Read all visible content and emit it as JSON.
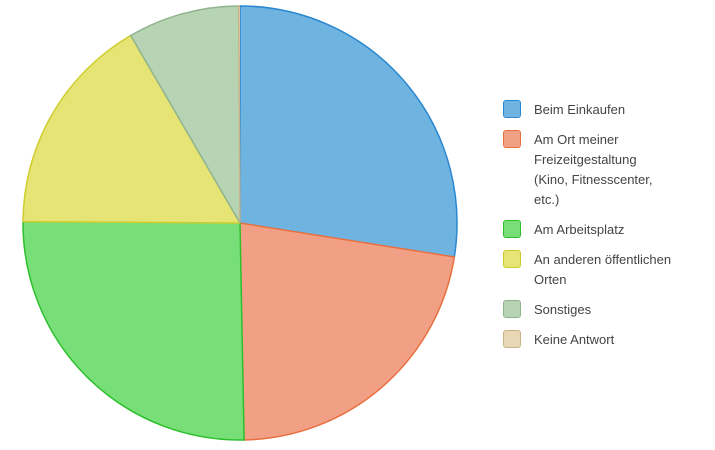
{
  "chart_data": {
    "type": "pie",
    "categories": [
      "Beim Einkaufen",
      "Am Ort meiner Freizeitgestaltung (Kino, Fitnesscenter, etc.)",
      "Am Arbeitsplatz",
      "An anderen öffentlichen Orten",
      "Sonstiges",
      "Keine Antwort"
    ],
    "values": [
      27.5,
      22.2,
      25.4,
      16.5,
      8.3,
      0.1
    ],
    "colors": [
      "#6fb3e0",
      "#f2a085",
      "#78df78",
      "#e5e475",
      "#b6d3b4",
      "#e8d6b4"
    ],
    "stroke_colors": [
      "#2b88d0",
      "#e8703f",
      "#2dbf2d",
      "#cfcd2e",
      "#8fb48c",
      "#c9b388"
    ],
    "legend_position": "right",
    "start_angle_deg": -90,
    "direction": "clockwise"
  }
}
